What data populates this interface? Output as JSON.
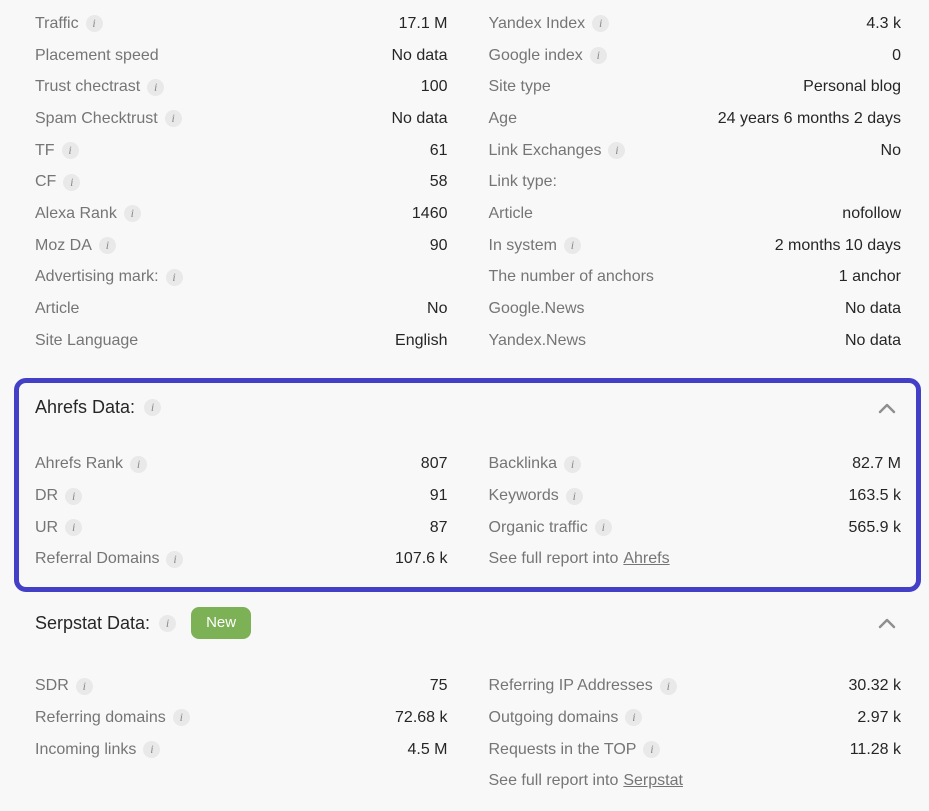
{
  "colors": {
    "background": "#f8f8f8",
    "accent_border": "#4340c7",
    "badge_green": "#7db155",
    "label_gray": "#757575",
    "value_dark": "#262626",
    "chevron_gray": "#8f8f8f"
  },
  "main": {
    "left_rows": [
      {
        "label": "Traffic",
        "info": true,
        "value": "17.1 M"
      },
      {
        "label": "Placement speed",
        "info": false,
        "value": "No data"
      },
      {
        "label": "Trust chectrast",
        "info": true,
        "value": "100"
      },
      {
        "label": "Spam Checktrust",
        "info": true,
        "value": "No data"
      },
      {
        "label": "TF",
        "info": true,
        "value": "61"
      },
      {
        "label": "CF",
        "info": true,
        "value": "58"
      },
      {
        "label": "Alexa Rank",
        "info": true,
        "value": "1460"
      },
      {
        "label": "Moz DA",
        "info": true,
        "value": "90"
      },
      {
        "label": "Advertising mark:",
        "info": true,
        "value": ""
      },
      {
        "label": "Article",
        "info": false,
        "value": "No"
      },
      {
        "label": "Site Language",
        "info": false,
        "value": "English"
      }
    ],
    "right_rows": [
      {
        "label": "Yandex Index",
        "info": true,
        "value": "4.3 k"
      },
      {
        "label": "Google index",
        "info": true,
        "value": "0"
      },
      {
        "label": "Site type",
        "info": false,
        "value": "Personal blog"
      },
      {
        "label": "Age",
        "info": false,
        "value": "24 years 6 months 2 days"
      },
      {
        "label": "Link Exchanges",
        "info": true,
        "value": "No"
      },
      {
        "label": "Link type:",
        "info": false,
        "value": ""
      },
      {
        "label": "Article",
        "info": false,
        "value": "nofollow"
      },
      {
        "label": "In system",
        "info": true,
        "value": "2 months 10 days"
      },
      {
        "label": "The number of anchors",
        "info": false,
        "value": "1 anchor"
      },
      {
        "label": "Google.News",
        "info": false,
        "value": "No data"
      },
      {
        "label": "Yandex.News",
        "info": false,
        "value": "No data"
      }
    ]
  },
  "ahrefs": {
    "title": "Ahrefs Data:",
    "left_rows": [
      {
        "label": "Ahrefs Rank",
        "info": true,
        "value": "807"
      },
      {
        "label": "DR",
        "info": true,
        "value": "91"
      },
      {
        "label": "UR",
        "info": true,
        "value": "87"
      },
      {
        "label": "Referral Domains",
        "info": true,
        "value": "107.6 k"
      }
    ],
    "right_rows": [
      {
        "label": "Backlinka",
        "info": true,
        "value": "82.7 M"
      },
      {
        "label": "Keywords",
        "info": true,
        "value": "163.5 k"
      },
      {
        "label": "Organic traffic",
        "info": true,
        "value": "565.9 k"
      },
      {
        "prefix": "See full report into",
        "link": "Ahrefs",
        "link_name": "ahrefs-report-link"
      }
    ]
  },
  "serpstat": {
    "title": "Serpstat Data:",
    "badge": "New",
    "left_rows": [
      {
        "label": "SDR",
        "info": true,
        "value": "75"
      },
      {
        "label": "Referring domains",
        "info": true,
        "value": "72.68 k"
      },
      {
        "label": "Incoming links",
        "info": true,
        "value": "4.5 M"
      }
    ],
    "right_rows": [
      {
        "label": "Referring IP Addresses",
        "info": true,
        "value": "30.32 k"
      },
      {
        "label": "Outgoing domains",
        "info": true,
        "value": "2.97 k"
      },
      {
        "label": "Requests in the TOP",
        "info": true,
        "value": "11.28 k"
      },
      {
        "prefix": "See full report into",
        "link": "Serpstat",
        "link_name": "serpstat-report-link"
      }
    ]
  }
}
